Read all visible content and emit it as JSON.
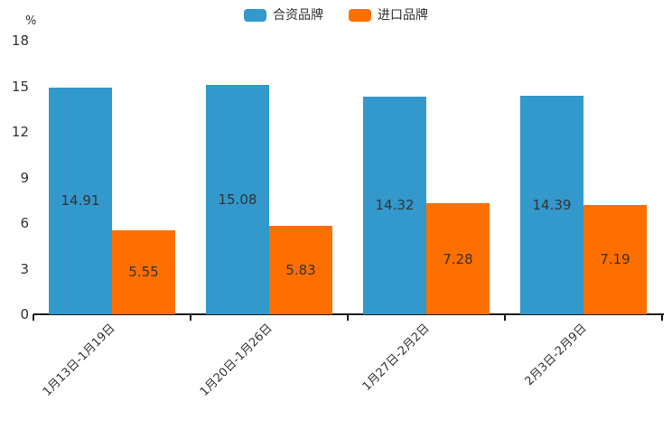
{
  "chart": {
    "unit_label": "%",
    "axis_color": "#1a1a1a",
    "text_color": "#333333",
    "background_color": "#ffffff"
  },
  "legend": {
    "items": [
      {
        "label": "合资品牌",
        "color": "#3398cc"
      },
      {
        "label": "进口品牌",
        "color": "#ff6f00"
      }
    ]
  },
  "chart_data": {
    "type": "bar",
    "title": "",
    "categories": [
      "1月13日-1月19日",
      "1月20日-1月26日",
      "1月27日-2月2日",
      "2月3日-2月9日"
    ],
    "series": [
      {
        "name": "合资品牌",
        "color": "#3398cc",
        "values": [
          14.91,
          15.08,
          14.32,
          14.39
        ]
      },
      {
        "name": "进口品牌",
        "color": "#ff6f00",
        "values": [
          5.55,
          5.83,
          7.28,
          7.19
        ]
      }
    ],
    "xlabel": "",
    "ylabel": "%",
    "ylim": [
      0,
      18
    ],
    "yticks": [
      0,
      3,
      6,
      9,
      12,
      15,
      18
    ],
    "grid": false,
    "legend_position": "top-center",
    "value_labels": "inside-center",
    "x_label_rotation_deg": 45
  }
}
